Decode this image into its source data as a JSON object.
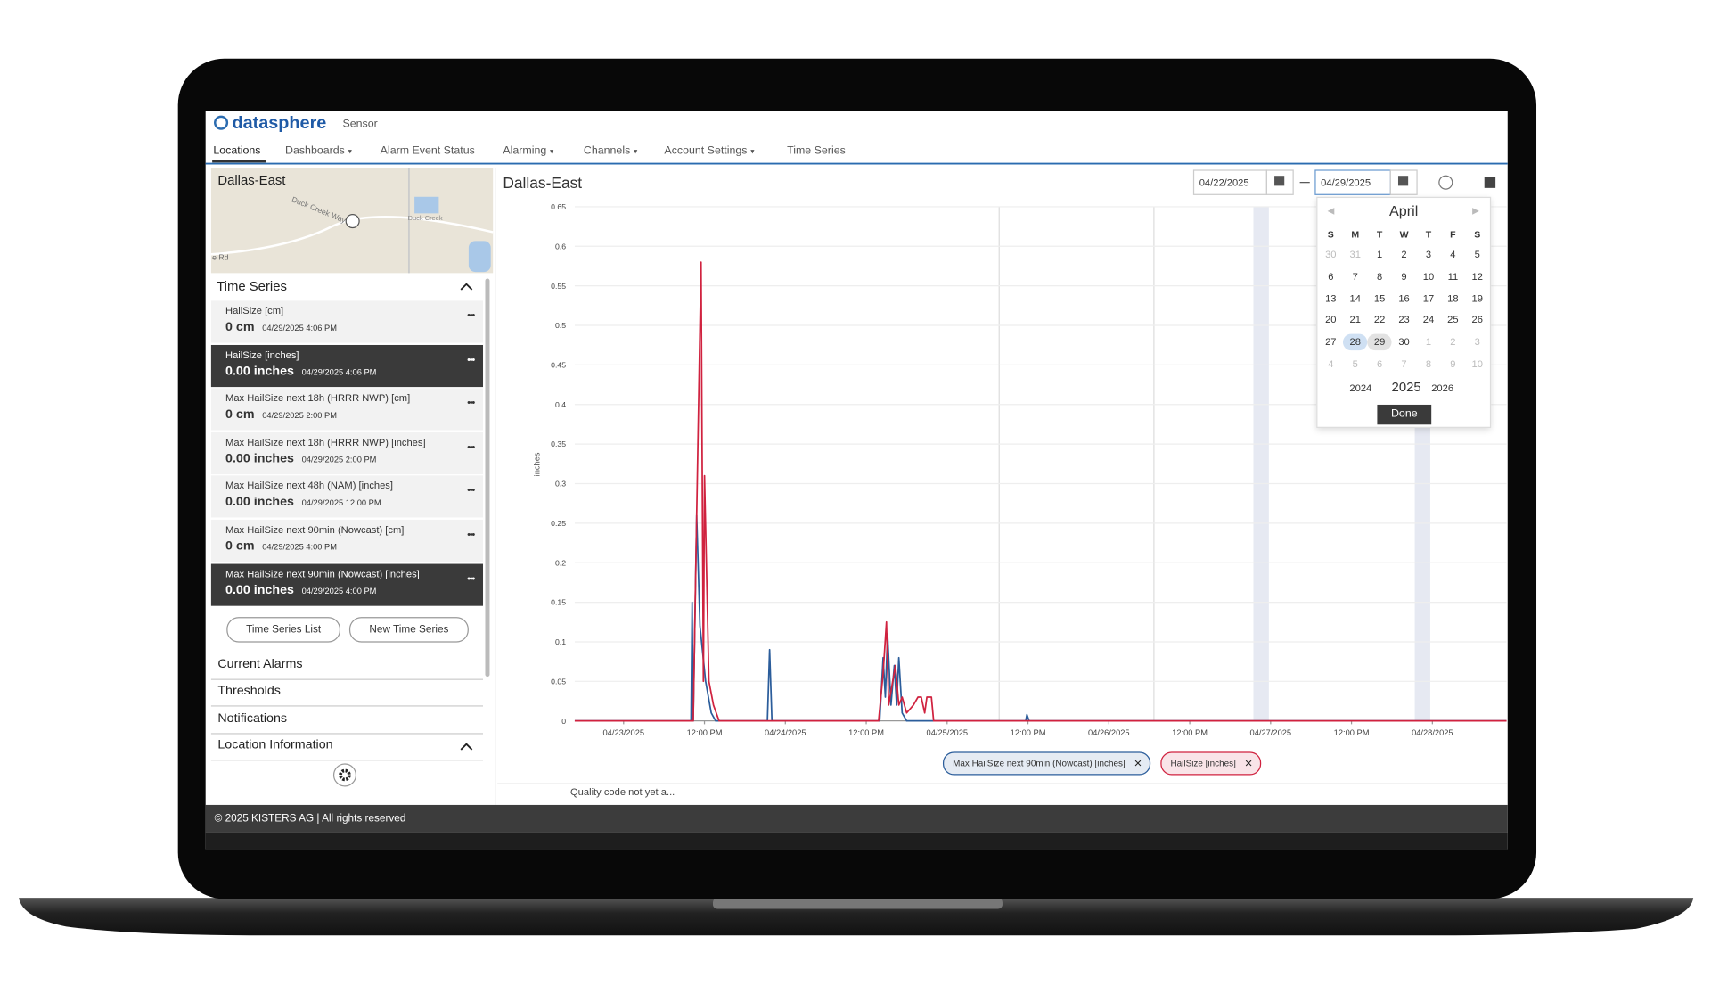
{
  "header": {
    "logo": "datasphere",
    "menu": "Sensor"
  },
  "nav": [
    {
      "label": "Locations"
    },
    {
      "label": "Dashboards",
      "menu": true
    },
    {
      "label": "Alarm Event Status"
    },
    {
      "label": "Alarming",
      "menu": true
    },
    {
      "label": "Channels",
      "menu": true
    },
    {
      "label": "Account Settings",
      "menu": true
    },
    {
      "label": "Time Series"
    }
  ],
  "sidebar": {
    "location": "Dallas-East",
    "map_labels": [
      "Duck Creek Way",
      "Duck Creek",
      "e Rd"
    ],
    "time_series_title": "Time Series",
    "items": [
      {
        "name": "HailSize [cm]",
        "value": "0 cm",
        "time": "04/29/2025 4:06 PM"
      },
      {
        "name": "HailSize [inches]",
        "value": "0.00 inches",
        "time": "04/29/2025 4:06 PM",
        "selected": true
      },
      {
        "name": "Max HailSize next 18h (HRRR NWP) [cm]",
        "value": "0 cm",
        "time": "04/29/2025 2:00 PM"
      },
      {
        "name": "Max HailSize next 18h (HRRR NWP) [inches]",
        "value": "0.00 inches",
        "time": "04/29/2025 2:00 PM"
      },
      {
        "name": "Max HailSize next 48h (NAM) [inches]",
        "value": "0.00 inches",
        "time": "04/29/2025 12:00 PM"
      },
      {
        "name": "Max HailSize next 90min (Nowcast) [cm]",
        "value": "0 cm",
        "time": "04/29/2025 4:00 PM"
      },
      {
        "name": "Max HailSize next 90min (Nowcast) [inches]",
        "value": "0.00 inches",
        "time": "04/29/2025 4:00 PM",
        "selected": true
      }
    ],
    "buttons": [
      "Time Series List",
      "New Time Series"
    ],
    "sections": [
      "Current Alarms",
      "Thresholds",
      "Notifications",
      "Location Information"
    ]
  },
  "panel": {
    "title": "Dallas-East",
    "date_from": "04/22/2025",
    "date_to": "04/29/2025"
  },
  "calendar": {
    "month": "April",
    "weekdays": [
      "S",
      "M",
      "T",
      "W",
      "T",
      "F",
      "S"
    ],
    "weeks": [
      [
        30,
        31,
        1,
        2,
        3,
        4,
        5
      ],
      [
        6,
        7,
        8,
        9,
        10,
        11,
        12
      ],
      [
        13,
        14,
        15,
        16,
        17,
        18,
        19
      ],
      [
        20,
        21,
        22,
        23,
        24,
        25,
        26
      ],
      [
        27,
        28,
        29,
        30,
        1,
        2,
        3
      ],
      [
        4,
        5,
        6,
        7,
        8,
        9,
        10
      ]
    ],
    "years": [
      "2024",
      "2025",
      "2026"
    ],
    "done": "Done"
  },
  "chart_data": {
    "type": "line",
    "y_label": "inches",
    "xlim": [
      "2025-04-22T16:45",
      "2025-04-28T11:00"
    ],
    "xticks": [
      {
        "value": "2025-04-23T00:00",
        "label": "04/23/2025"
      },
      {
        "value": "2025-04-23T12:00",
        "label": "12:00 PM"
      },
      {
        "value": "2025-04-24T00:00",
        "label": "04/24/2025"
      },
      {
        "value": "2025-04-24T12:00",
        "label": "12:00 PM"
      },
      {
        "value": "2025-04-25T00:00",
        "label": "04/25/2025"
      },
      {
        "value": "2025-04-25T12:00",
        "label": "12:00 PM"
      },
      {
        "value": "2025-04-26T00:00",
        "label": "04/26/2025"
      },
      {
        "value": "2025-04-26T12:00",
        "label": "12:00 PM"
      },
      {
        "value": "2025-04-27T00:00",
        "label": "04/27/2025"
      },
      {
        "value": "2025-04-27T12:00",
        "label": "12:00 PM"
      },
      {
        "value": "2025-04-28T00:00",
        "label": "04/28/2025"
      }
    ],
    "ylim": [
      0,
      0.65
    ],
    "yticks": [
      0,
      0.05,
      0.1,
      0.15,
      0.2,
      0.25,
      0.3,
      0.35,
      0.4,
      0.45,
      0.5,
      0.55,
      0.6,
      0.65
    ],
    "grid": true,
    "series": [
      {
        "name": "Max HailSize next 90min (Nowcast) [inches]",
        "color": "#2b5d9b",
        "x": [
          "2025-04-22T16:45",
          "2025-04-23T10:00",
          "2025-04-23T10:10",
          "2025-04-23T10:20",
          "2025-04-23T10:50",
          "2025-04-23T11:20",
          "2025-04-23T12:10",
          "2025-04-23T13:00",
          "2025-04-23T13:40",
          "2025-04-23T21:20",
          "2025-04-23T21:40",
          "2025-04-23T22:00",
          "2025-04-24T14:00",
          "2025-04-24T14:30",
          "2025-04-24T14:50",
          "2025-04-24T15:10",
          "2025-04-24T15:40",
          "2025-04-24T16:10",
          "2025-04-24T16:30",
          "2025-04-24T16:50",
          "2025-04-24T17:20",
          "2025-04-24T18:00",
          "2025-04-25T11:40",
          "2025-04-25T11:50",
          "2025-04-25T12:10",
          "2025-04-28T11:00"
        ],
        "values": [
          0,
          0,
          0.15,
          0,
          0.26,
          0.12,
          0.05,
          0.01,
          0,
          0,
          0.09,
          0,
          0,
          0.08,
          0.03,
          0.11,
          0.02,
          0.07,
          0.02,
          0.08,
          0.01,
          0,
          0,
          0.008,
          0,
          0
        ]
      },
      {
        "name": "HailSize [inches]",
        "color": "#d0223f",
        "x": [
          "2025-04-22T16:45",
          "2025-04-23T10:20",
          "2025-04-23T10:50",
          "2025-04-23T11:30",
          "2025-04-23T11:50",
          "2025-04-23T12:00",
          "2025-04-23T12:40",
          "2025-04-23T13:20",
          "2025-04-23T14:10",
          "2025-04-24T13:50",
          "2025-04-24T14:30",
          "2025-04-24T15:00",
          "2025-04-24T15:20",
          "2025-04-24T16:20",
          "2025-04-24T16:50",
          "2025-04-24T17:20",
          "2025-04-24T18:00",
          "2025-04-24T19:00",
          "2025-04-24T19:40",
          "2025-04-24T20:10",
          "2025-04-24T20:40",
          "2025-04-24T21:00",
          "2025-04-24T21:40",
          "2025-04-24T22:00",
          "2025-04-28T11:00"
        ],
        "values": [
          0,
          0,
          0.26,
          0.58,
          0.05,
          0.31,
          0.05,
          0.02,
          0,
          0,
          0.06,
          0.125,
          0.02,
          0.07,
          0.02,
          0.03,
          0.01,
          0.02,
          0.03,
          0.03,
          0.01,
          0.03,
          0.03,
          0,
          0
        ]
      }
    ]
  },
  "quality": "Quality code not yet a...",
  "footer": "© 2025 KISTERS AG | All rights reserved"
}
